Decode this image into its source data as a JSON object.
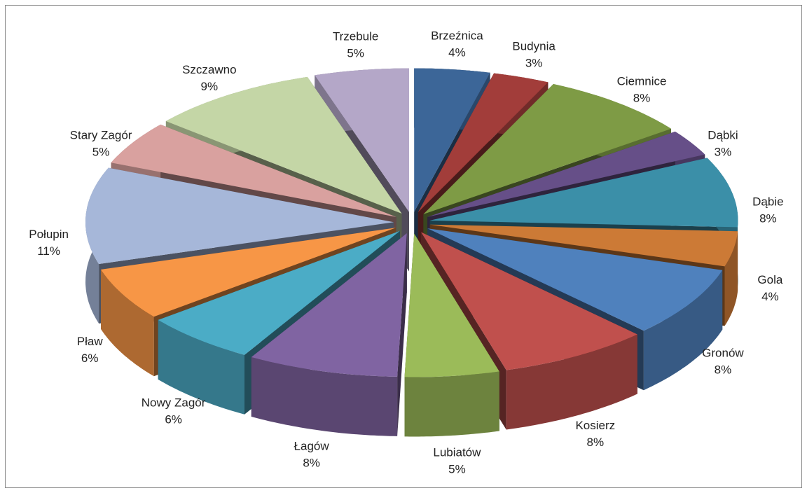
{
  "chart_data": {
    "type": "pie",
    "categories": [
      "Brzeźnica",
      "Budynia",
      "Ciemnice",
      "Dąbki",
      "Dąbie",
      "Gola",
      "Gronów",
      "Kosierz",
      "Lubiatów",
      "Łagów",
      "Nowy Zagór",
      "Pław",
      "Połupin",
      "Stary Zagór",
      "Szczawno",
      "Trzebule"
    ],
    "values": [
      4,
      3,
      8,
      3,
      8,
      4,
      8,
      8,
      5,
      8,
      6,
      6,
      11,
      5,
      9,
      5
    ],
    "value_labels": [
      "4%",
      "3%",
      "8%",
      "3%",
      "8%",
      "4%",
      "8%",
      "8%",
      "5%",
      "8%",
      "6%",
      "6%",
      "11%",
      "5%",
      "9%",
      "5%"
    ],
    "colors": [
      "#3c6698",
      "#a23d3a",
      "#7e9b45",
      "#664f88",
      "#3b8fa8",
      "#cc7a36",
      "#4f81bd",
      "#c0504d",
      "#9bbb59",
      "#8064a2",
      "#4bacc6",
      "#f79646",
      "#a6b7d9",
      "#d9a19f",
      "#c4d6a6",
      "#b4a7c8"
    ]
  }
}
